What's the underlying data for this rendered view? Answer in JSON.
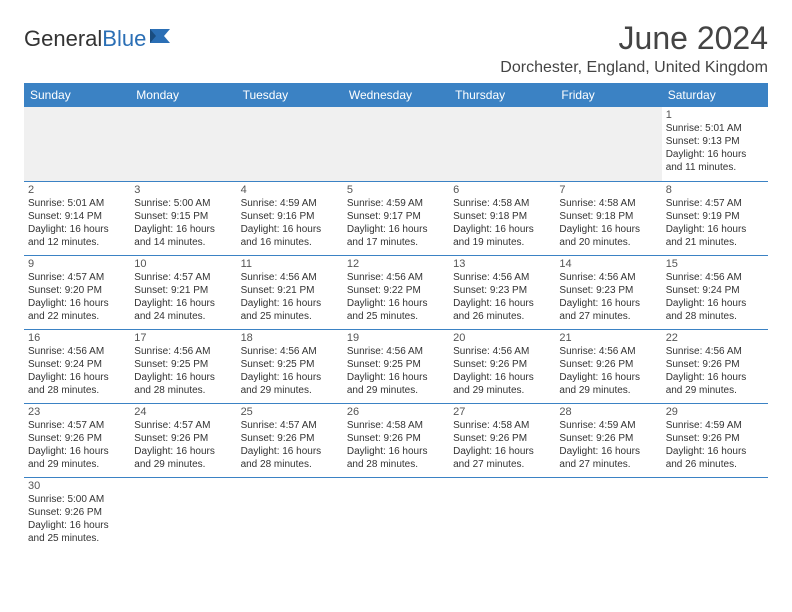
{
  "brand": {
    "name_part1": "General",
    "name_part2": "Blue",
    "flag_color": "#2b6fb5"
  },
  "header": {
    "month_title": "June 2024",
    "location": "Dorchester, England, United Kingdom"
  },
  "colors": {
    "header_bg": "#3b82c4",
    "header_text": "#ffffff",
    "border": "#3b82c4",
    "blank_bg": "#f0f0f0",
    "text": "#333333"
  },
  "weekdays": [
    "Sunday",
    "Monday",
    "Tuesday",
    "Wednesday",
    "Thursday",
    "Friday",
    "Saturday"
  ],
  "weeks": [
    [
      null,
      null,
      null,
      null,
      null,
      null,
      {
        "n": "1",
        "sr": "Sunrise: 5:01 AM",
        "ss": "Sunset: 9:13 PM",
        "d1": "Daylight: 16 hours",
        "d2": "and 11 minutes."
      }
    ],
    [
      {
        "n": "2",
        "sr": "Sunrise: 5:01 AM",
        "ss": "Sunset: 9:14 PM",
        "d1": "Daylight: 16 hours",
        "d2": "and 12 minutes."
      },
      {
        "n": "3",
        "sr": "Sunrise: 5:00 AM",
        "ss": "Sunset: 9:15 PM",
        "d1": "Daylight: 16 hours",
        "d2": "and 14 minutes."
      },
      {
        "n": "4",
        "sr": "Sunrise: 4:59 AM",
        "ss": "Sunset: 9:16 PM",
        "d1": "Daylight: 16 hours",
        "d2": "and 16 minutes."
      },
      {
        "n": "5",
        "sr": "Sunrise: 4:59 AM",
        "ss": "Sunset: 9:17 PM",
        "d1": "Daylight: 16 hours",
        "d2": "and 17 minutes."
      },
      {
        "n": "6",
        "sr": "Sunrise: 4:58 AM",
        "ss": "Sunset: 9:18 PM",
        "d1": "Daylight: 16 hours",
        "d2": "and 19 minutes."
      },
      {
        "n": "7",
        "sr": "Sunrise: 4:58 AM",
        "ss": "Sunset: 9:18 PM",
        "d1": "Daylight: 16 hours",
        "d2": "and 20 minutes."
      },
      {
        "n": "8",
        "sr": "Sunrise: 4:57 AM",
        "ss": "Sunset: 9:19 PM",
        "d1": "Daylight: 16 hours",
        "d2": "and 21 minutes."
      }
    ],
    [
      {
        "n": "9",
        "sr": "Sunrise: 4:57 AM",
        "ss": "Sunset: 9:20 PM",
        "d1": "Daylight: 16 hours",
        "d2": "and 22 minutes."
      },
      {
        "n": "10",
        "sr": "Sunrise: 4:57 AM",
        "ss": "Sunset: 9:21 PM",
        "d1": "Daylight: 16 hours",
        "d2": "and 24 minutes."
      },
      {
        "n": "11",
        "sr": "Sunrise: 4:56 AM",
        "ss": "Sunset: 9:21 PM",
        "d1": "Daylight: 16 hours",
        "d2": "and 25 minutes."
      },
      {
        "n": "12",
        "sr": "Sunrise: 4:56 AM",
        "ss": "Sunset: 9:22 PM",
        "d1": "Daylight: 16 hours",
        "d2": "and 25 minutes."
      },
      {
        "n": "13",
        "sr": "Sunrise: 4:56 AM",
        "ss": "Sunset: 9:23 PM",
        "d1": "Daylight: 16 hours",
        "d2": "and 26 minutes."
      },
      {
        "n": "14",
        "sr": "Sunrise: 4:56 AM",
        "ss": "Sunset: 9:23 PM",
        "d1": "Daylight: 16 hours",
        "d2": "and 27 minutes."
      },
      {
        "n": "15",
        "sr": "Sunrise: 4:56 AM",
        "ss": "Sunset: 9:24 PM",
        "d1": "Daylight: 16 hours",
        "d2": "and 28 minutes."
      }
    ],
    [
      {
        "n": "16",
        "sr": "Sunrise: 4:56 AM",
        "ss": "Sunset: 9:24 PM",
        "d1": "Daylight: 16 hours",
        "d2": "and 28 minutes."
      },
      {
        "n": "17",
        "sr": "Sunrise: 4:56 AM",
        "ss": "Sunset: 9:25 PM",
        "d1": "Daylight: 16 hours",
        "d2": "and 28 minutes."
      },
      {
        "n": "18",
        "sr": "Sunrise: 4:56 AM",
        "ss": "Sunset: 9:25 PM",
        "d1": "Daylight: 16 hours",
        "d2": "and 29 minutes."
      },
      {
        "n": "19",
        "sr": "Sunrise: 4:56 AM",
        "ss": "Sunset: 9:25 PM",
        "d1": "Daylight: 16 hours",
        "d2": "and 29 minutes."
      },
      {
        "n": "20",
        "sr": "Sunrise: 4:56 AM",
        "ss": "Sunset: 9:26 PM",
        "d1": "Daylight: 16 hours",
        "d2": "and 29 minutes."
      },
      {
        "n": "21",
        "sr": "Sunrise: 4:56 AM",
        "ss": "Sunset: 9:26 PM",
        "d1": "Daylight: 16 hours",
        "d2": "and 29 minutes."
      },
      {
        "n": "22",
        "sr": "Sunrise: 4:56 AM",
        "ss": "Sunset: 9:26 PM",
        "d1": "Daylight: 16 hours",
        "d2": "and 29 minutes."
      }
    ],
    [
      {
        "n": "23",
        "sr": "Sunrise: 4:57 AM",
        "ss": "Sunset: 9:26 PM",
        "d1": "Daylight: 16 hours",
        "d2": "and 29 minutes."
      },
      {
        "n": "24",
        "sr": "Sunrise: 4:57 AM",
        "ss": "Sunset: 9:26 PM",
        "d1": "Daylight: 16 hours",
        "d2": "and 29 minutes."
      },
      {
        "n": "25",
        "sr": "Sunrise: 4:57 AM",
        "ss": "Sunset: 9:26 PM",
        "d1": "Daylight: 16 hours",
        "d2": "and 28 minutes."
      },
      {
        "n": "26",
        "sr": "Sunrise: 4:58 AM",
        "ss": "Sunset: 9:26 PM",
        "d1": "Daylight: 16 hours",
        "d2": "and 28 minutes."
      },
      {
        "n": "27",
        "sr": "Sunrise: 4:58 AM",
        "ss": "Sunset: 9:26 PM",
        "d1": "Daylight: 16 hours",
        "d2": "and 27 minutes."
      },
      {
        "n": "28",
        "sr": "Sunrise: 4:59 AM",
        "ss": "Sunset: 9:26 PM",
        "d1": "Daylight: 16 hours",
        "d2": "and 27 minutes."
      },
      {
        "n": "29",
        "sr": "Sunrise: 4:59 AM",
        "ss": "Sunset: 9:26 PM",
        "d1": "Daylight: 16 hours",
        "d2": "and 26 minutes."
      }
    ],
    [
      {
        "n": "30",
        "sr": "Sunrise: 5:00 AM",
        "ss": "Sunset: 9:26 PM",
        "d1": "Daylight: 16 hours",
        "d2": "and 25 minutes."
      },
      null,
      null,
      null,
      null,
      null,
      null
    ]
  ]
}
